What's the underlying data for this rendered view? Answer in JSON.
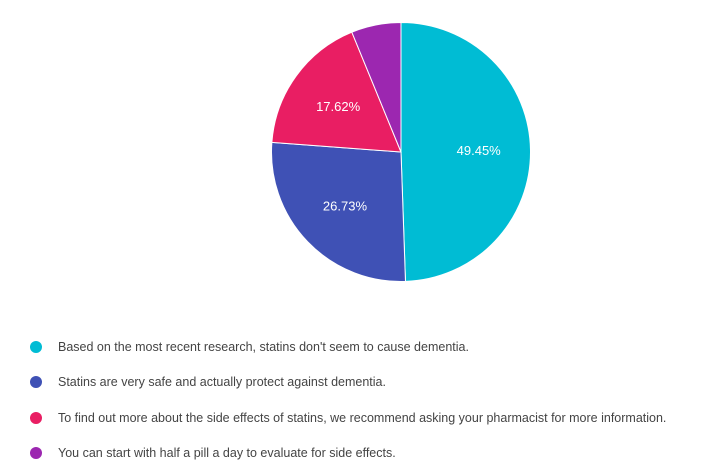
{
  "chart_data": {
    "type": "pie",
    "title": "",
    "legend_position": "bottom",
    "slices": [
      {
        "label": "Based on the most recent research, statins don't seem to cause dementia.",
        "value": 49.45,
        "value_label": "49.45%",
        "color": "#00bcd4"
      },
      {
        "label": "Statins are very safe and actually protect against dementia.",
        "value": 26.73,
        "value_label": "26.73%",
        "color": "#3f51b5"
      },
      {
        "label": "To find out more about the side effects of statins, we recommend asking your pharmacist for more information.",
        "value": 17.62,
        "value_label": "17.62%",
        "color": "#e91e63"
      },
      {
        "label": "You can start with half a pill a day to evaluate for side effects.",
        "value": 6.2,
        "value_label": "",
        "color": "#9c27b0"
      }
    ]
  }
}
